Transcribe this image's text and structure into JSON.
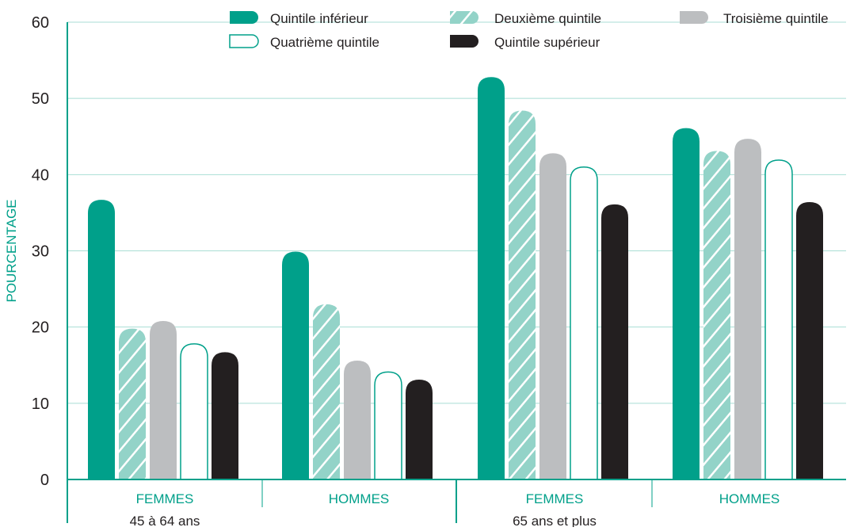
{
  "chart_data": {
    "type": "bar",
    "ylabel": "POURCENTAGE",
    "ylim": [
      0,
      60
    ],
    "yticks": [
      "0",
      "10",
      "20",
      "30",
      "40",
      "50",
      "60"
    ],
    "grid": true,
    "legend_position": "top",
    "categories": [
      "FEMMES",
      "HOMMES",
      "FEMMES",
      "HOMMES"
    ],
    "groups": [
      {
        "label": "45 à 64 ans",
        "categories": [
          "FEMMES",
          "HOMMES"
        ]
      },
      {
        "label": "65 ans et plus",
        "categories": [
          "FEMMES",
          "HOMMES"
        ]
      }
    ],
    "series": [
      {
        "name": "Quintile inférieur",
        "values": [
          36.7,
          29.9,
          52.8,
          46.1
        ],
        "color": "#00a08a",
        "style": "solid"
      },
      {
        "name": "Deuxième quintile",
        "values": [
          19.8,
          23.0,
          48.4,
          43.1
        ],
        "color": "#93d3c8",
        "style": "hatched"
      },
      {
        "name": "Troisième quintile",
        "values": [
          20.8,
          15.6,
          42.8,
          44.7
        ],
        "color": "#bcbec0",
        "style": "solid"
      },
      {
        "name": "Quatrième quintile",
        "values": [
          17.8,
          14.1,
          41.0,
          41.9
        ],
        "color": "#ffffff",
        "style": "outline"
      },
      {
        "name": "Quintile supérieur",
        "values": [
          16.7,
          13.1,
          36.1,
          36.4
        ],
        "color": "#231f20",
        "style": "solid"
      }
    ],
    "colors": {
      "accent": "#00a08a",
      "grid": "#a9ded4",
      "text": "#231f20"
    }
  }
}
